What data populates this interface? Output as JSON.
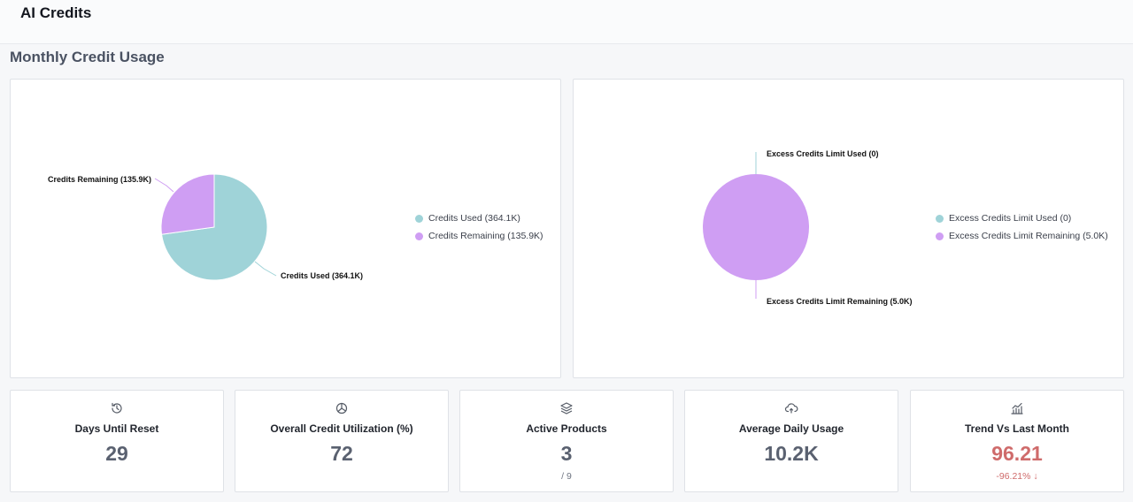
{
  "header": {
    "title": "AI Credits"
  },
  "section": {
    "title": "Monthly Credit Usage"
  },
  "colors": {
    "used": "#9fd3d8",
    "remaining": "#cf9ef3",
    "negative": "#cf6b6b"
  },
  "chart_data": [
    {
      "type": "pie",
      "slices": [
        {
          "label": "Credits Used (364.1K)",
          "value": 364.1,
          "color": "#9fd3d8"
        },
        {
          "label": "Credits Remaining (135.9K)",
          "value": 135.9,
          "color": "#cf9ef3"
        }
      ],
      "legend": [
        "Credits Used (364.1K)",
        "Credits Remaining (135.9K)"
      ],
      "legend_position": "right"
    },
    {
      "type": "pie",
      "slices": [
        {
          "label": "Excess Credits Limit Used (0)",
          "value": 0,
          "color": "#9fd3d8"
        },
        {
          "label": "Excess Credits Limit Remaining (5.0K)",
          "value": 5.0,
          "color": "#cf9ef3"
        }
      ],
      "legend": [
        "Excess Credits Limit Used (0)",
        "Excess Credits Limit Remaining (5.0K)"
      ],
      "legend_position": "right"
    }
  ],
  "cards": [
    {
      "icon": "history-icon",
      "label": "Days Until Reset",
      "value": "29"
    },
    {
      "icon": "pie-chart-icon",
      "label": "Overall Credit Utilization (%)",
      "value": "72"
    },
    {
      "icon": "layers-icon",
      "label": "Active Products",
      "value": "3",
      "sub": "/ 9"
    },
    {
      "icon": "cloud-sync-icon",
      "label": "Average Daily Usage",
      "value": "10.2K"
    },
    {
      "icon": "trend-chart-icon",
      "label": "Trend Vs Last Month",
      "value": "96.21",
      "sub": "-96.21% ↓"
    }
  ]
}
